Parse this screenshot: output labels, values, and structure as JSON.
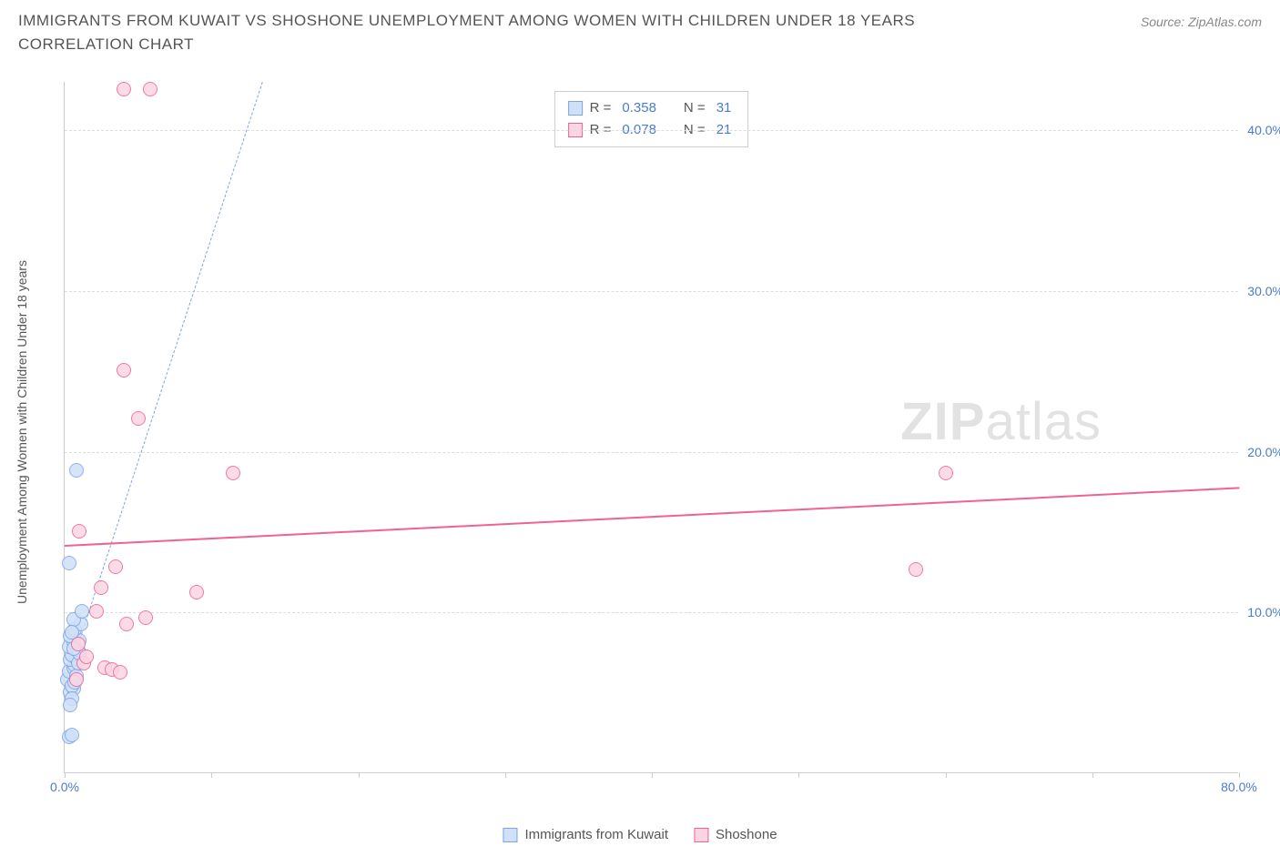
{
  "title": "IMMIGRANTS FROM KUWAIT VS SHOSHONE UNEMPLOYMENT AMONG WOMEN WITH CHILDREN UNDER 18 YEARS CORRELATION CHART",
  "source": "Source: ZipAtlas.com",
  "watermark_bold": "ZIP",
  "watermark_rest": "atlas",
  "y_axis_label": "Unemployment Among Women with Children Under 18 years",
  "chart": {
    "type": "scatter",
    "background_color": "#ffffff",
    "grid_color": "#dddddd",
    "axis_color": "#cccccc",
    "xlim": [
      0,
      80
    ],
    "ylim": [
      0,
      43
    ],
    "x_ticks": [
      0,
      10,
      20,
      30,
      40,
      50,
      60,
      70,
      80
    ],
    "x_tick_labels": {
      "0": "0.0%",
      "80": "80.0%"
    },
    "y_grid": [
      10,
      20,
      30,
      40
    ],
    "y_tick_labels": {
      "10": "10.0%",
      "20": "20.0%",
      "30": "30.0%",
      "40": "40.0%"
    },
    "tick_label_color": "#4a7bd0",
    "tick_label_fontsize": 14,
    "axis_label_color": "#555555",
    "title_color": "#555555",
    "title_fontsize": 17,
    "marker_radius": 8,
    "marker_stroke_width": 1.5,
    "series": [
      {
        "name": "Immigrants from Kuwait",
        "fill": "#cfe0f7",
        "stroke": "#7da3e8",
        "points": [
          [
            0.3,
            2.2
          ],
          [
            0.5,
            2.3
          ],
          [
            0.4,
            5.0
          ],
          [
            0.6,
            5.2
          ],
          [
            0.2,
            5.8
          ],
          [
            0.3,
            6.3
          ],
          [
            0.6,
            6.5
          ],
          [
            0.7,
            6.7
          ],
          [
            0.4,
            7.0
          ],
          [
            0.8,
            7.1
          ],
          [
            0.5,
            7.3
          ],
          [
            0.9,
            7.6
          ],
          [
            0.3,
            7.8
          ],
          [
            0.6,
            8.1
          ],
          [
            1.0,
            8.2
          ],
          [
            0.4,
            8.5
          ],
          [
            0.7,
            8.9
          ],
          [
            1.1,
            9.2
          ],
          [
            0.5,
            5.4
          ],
          [
            0.8,
            6.0
          ],
          [
            0.6,
            9.5
          ],
          [
            1.2,
            10.0
          ],
          [
            0.3,
            13.0
          ],
          [
            0.8,
            18.8
          ],
          [
            0.5,
            4.6
          ],
          [
            0.4,
            4.2
          ],
          [
            0.9,
            6.8
          ],
          [
            0.7,
            5.6
          ],
          [
            1.0,
            7.4
          ],
          [
            0.6,
            7.7
          ],
          [
            0.5,
            8.7
          ]
        ],
        "trend": {
          "style": "dashed",
          "color": "#7da3e8",
          "width": 1.5,
          "p1": [
            0.4,
            6.5
          ],
          "p2": [
            13.5,
            43.0
          ]
        },
        "stats": {
          "R": "0.358",
          "N": "31"
        }
      },
      {
        "name": "Shoshone",
        "fill": "#fbd5e2",
        "stroke": "#f06292",
        "points": [
          [
            4.0,
            42.5
          ],
          [
            5.8,
            42.5
          ],
          [
            1.0,
            15.0
          ],
          [
            4.0,
            25.0
          ],
          [
            5.0,
            22.0
          ],
          [
            11.5,
            18.6
          ],
          [
            3.5,
            12.8
          ],
          [
            2.5,
            11.5
          ],
          [
            9.0,
            11.2
          ],
          [
            2.2,
            10.0
          ],
          [
            5.5,
            9.6
          ],
          [
            4.2,
            9.2
          ],
          [
            1.3,
            6.8
          ],
          [
            2.7,
            6.5
          ],
          [
            3.2,
            6.4
          ],
          [
            0.9,
            8.0
          ],
          [
            1.5,
            7.2
          ],
          [
            3.8,
            6.2
          ],
          [
            0.8,
            5.8
          ],
          [
            60.0,
            18.6
          ],
          [
            58.0,
            12.6
          ]
        ],
        "trend": {
          "style": "solid",
          "color": "#f06292",
          "width": 2.5,
          "p1": [
            0,
            14.2
          ],
          "p2": [
            80,
            17.8
          ]
        },
        "stats": {
          "R": "0.078",
          "N": "21"
        }
      }
    ]
  },
  "legend_top": {
    "R_label": "R =",
    "N_label": "N ="
  },
  "legend_bottom": [
    {
      "label": "Immigrants from Kuwait",
      "fill": "#cfe0f7",
      "stroke": "#7da3e8"
    },
    {
      "label": "Shoshone",
      "fill": "#fbd5e2",
      "stroke": "#f06292"
    }
  ]
}
